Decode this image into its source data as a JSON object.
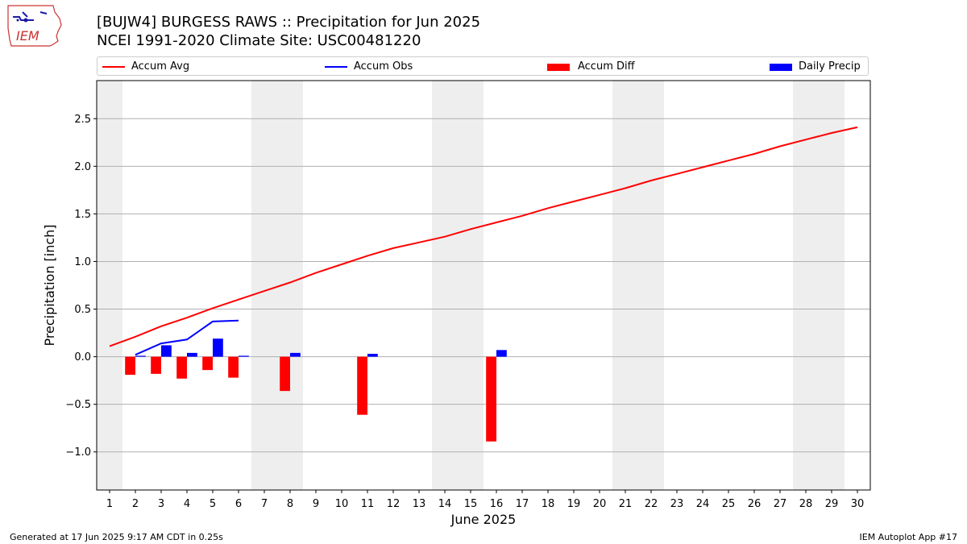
{
  "header": {
    "logo_text": "IEM",
    "title_line1": "[BUJW4] BURGESS RAWS :: Precipitation for Jun 2025",
    "title_line2": "NCEI 1991-2020 Climate Site: USC00481220"
  },
  "legend": [
    {
      "label": "Accum Avg",
      "color": "#ff0000",
      "kind": "line"
    },
    {
      "label": "Accum Obs",
      "color": "#0000ff",
      "kind": "line"
    },
    {
      "label": "Accum Diff",
      "color": "#ff0000",
      "kind": "bar"
    },
    {
      "label": "Daily Precip",
      "color": "#0000ff",
      "kind": "bar"
    }
  ],
  "chart_data": {
    "type": "bar",
    "xlabel": "June 2025",
    "ylabel": "Precipitation [inch]",
    "x": [
      1,
      2,
      3,
      4,
      5,
      6,
      7,
      8,
      9,
      10,
      11,
      12,
      13,
      14,
      15,
      16,
      17,
      18,
      19,
      20,
      21,
      22,
      23,
      24,
      25,
      26,
      27,
      28,
      29,
      30
    ],
    "xlim": [
      0.5,
      30.5
    ],
    "ylim": [
      -1.4,
      2.9
    ],
    "yticks": [
      -1.0,
      -0.5,
      0.0,
      0.5,
      1.0,
      1.5,
      2.0,
      2.5
    ],
    "ytick_labels": [
      "−1.0",
      "−0.5",
      "0.0",
      "0.5",
      "1.0",
      "1.5",
      "2.0",
      "2.5"
    ],
    "grid": "horizontal",
    "legend_position": "top",
    "weekend_shading": [
      [
        0.5,
        1.5
      ],
      [
        6.5,
        8.5
      ],
      [
        13.5,
        15.5
      ],
      [
        20.5,
        22.5
      ],
      [
        27.5,
        29.5
      ]
    ],
    "series": [
      {
        "name": "Accum Avg",
        "kind": "line",
        "color": "#ff0000",
        "x": [
          1,
          2,
          3,
          4,
          5,
          6,
          7,
          8,
          9,
          10,
          11,
          12,
          13,
          14,
          15,
          16,
          17,
          18,
          19,
          20,
          21,
          22,
          23,
          24,
          25,
          26,
          27,
          28,
          29,
          30
        ],
        "values": [
          0.11,
          0.21,
          0.32,
          0.41,
          0.51,
          0.6,
          0.69,
          0.78,
          0.88,
          0.97,
          1.06,
          1.14,
          1.2,
          1.26,
          1.34,
          1.41,
          1.48,
          1.56,
          1.63,
          1.7,
          1.77,
          1.85,
          1.92,
          1.99,
          2.06,
          2.13,
          2.21,
          2.28,
          2.35,
          2.41
        ]
      },
      {
        "name": "Accum Obs",
        "kind": "line",
        "color": "#0000ff",
        "x": [
          2,
          3,
          4,
          5,
          6
        ],
        "values": [
          0.02,
          0.14,
          0.18,
          0.37,
          0.38
        ]
      },
      {
        "name": "Accum Diff",
        "kind": "bar",
        "color": "#ff0000",
        "x": [
          2,
          3,
          4,
          5,
          6,
          8,
          11,
          16
        ],
        "values": [
          -0.19,
          -0.18,
          -0.23,
          -0.14,
          -0.22,
          -0.36,
          -0.61,
          -0.89
        ]
      },
      {
        "name": "Daily Precip",
        "kind": "bar",
        "color": "#0000ff",
        "x": [
          2,
          3,
          4,
          5,
          6,
          8,
          11,
          16
        ],
        "values": [
          0.01,
          0.12,
          0.04,
          0.19,
          0.01,
          0.04,
          0.03,
          0.07
        ]
      }
    ]
  },
  "footer": {
    "left": "Generated at 17 Jun 2025 9:17 AM CDT in 0.25s",
    "right": "IEM Autoplot App #17"
  }
}
